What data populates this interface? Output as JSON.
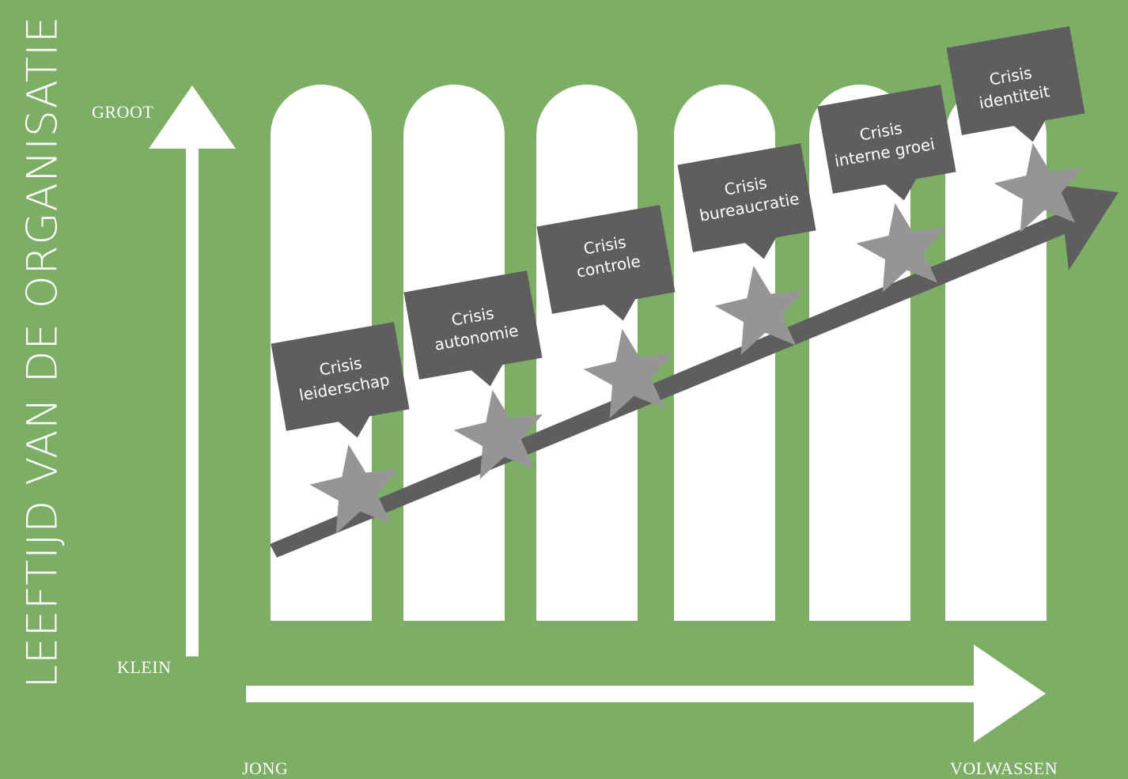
{
  "y_axis": {
    "title": "LEEFTIJD VAN DE ORGANISATIE",
    "top_label": "GROOT",
    "bottom_label": "KLEIN"
  },
  "x_axis": {
    "left_label": "JONG",
    "right_label": "VOLWASSEN"
  },
  "stages": [
    {
      "line1": "Crisis",
      "line2": "leiderschap"
    },
    {
      "line1": "Crisis",
      "line2": "autonomie"
    },
    {
      "line1": "Crisis",
      "line2": "controle"
    },
    {
      "line1": "Crisis",
      "line2": "bureaucratie"
    },
    {
      "line1": "Crisis",
      "line2": "interne groei"
    },
    {
      "line1": "Crisis",
      "line2": "identiteit"
    }
  ],
  "colors": {
    "background": "#7cae66",
    "pillar": "#ffffff",
    "callout": "#5e5e5e",
    "star": "#959595",
    "growth_arrow": "#5e5e5e",
    "axis": "#ffffff"
  }
}
